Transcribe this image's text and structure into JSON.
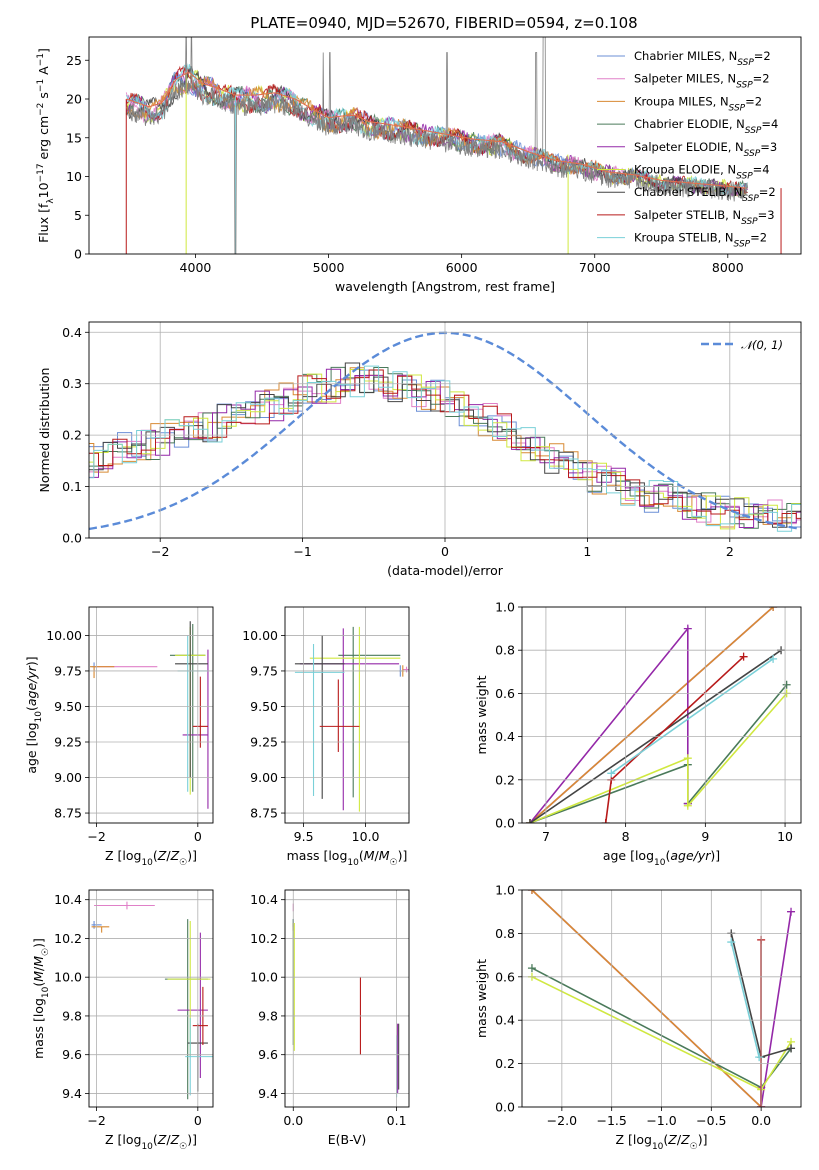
{
  "figure": {
    "title": "PLATE=0940, MJD=52670, FIBERID=0594, z=0.108"
  },
  "colors": {
    "Chabrier MILES": "#6b8fd6",
    "Salpeter MILES": "#e080c8",
    "Kroupa MILES": "#d88a33",
    "Chabrier ELODIE": "#4a7a5a",
    "Salpeter ELODIE": "#9428a8",
    "Kroupa ELODIE": "#d0e840",
    "Chabrier STELIB": "#444444",
    "Salpeter STELIB": "#b81a1a",
    "Kroupa STELIB": "#7ad0d8",
    "normal": "#5b8bd8",
    "data": "#808080"
  },
  "chart_data": [
    {
      "id": "spectrum",
      "type": "line",
      "title": "PLATE=0940, MJD=52670, FIBERID=0594, z=0.108",
      "xlabel": "wavelength [Angstrom, rest frame]",
      "ylabel": "Flux [fλ10⁻¹⁷ erg cm⁻² s⁻¹ A⁻¹]",
      "xlim": [
        3200,
        8550
      ],
      "ylim": [
        0,
        28
      ],
      "xticks": [
        4000,
        5000,
        6000,
        7000,
        8000
      ],
      "yticks": [
        0,
        5,
        10,
        15,
        20,
        25
      ],
      "legend_position": "top-right",
      "legend": [
        {
          "label": "Chabrier MILES, N",
          "sub": "SSP",
          "tail": "=2",
          "key": "Chabrier MILES"
        },
        {
          "label": "Salpeter MILES, N",
          "sub": "SSP",
          "tail": "=2",
          "key": "Salpeter MILES"
        },
        {
          "label": "Kroupa MILES, N",
          "sub": "SSP",
          "tail": "=2",
          "key": "Kroupa MILES"
        },
        {
          "label": "Chabrier ELODIE, N",
          "sub": "SSP",
          "tail": "=4",
          "key": "Chabrier ELODIE"
        },
        {
          "label": "Salpeter ELODIE, N",
          "sub": "SSP",
          "tail": "=3",
          "key": "Salpeter ELODIE"
        },
        {
          "label": "Kroupa ELODIE, N",
          "sub": "SSP",
          "tail": "=4",
          "key": "Kroupa ELODIE"
        },
        {
          "label": "Chabrier STELIB, N",
          "sub": "SSP",
          "tail": "=2",
          "key": "Chabrier STELIB"
        },
        {
          "label": "Salpeter STELIB, N",
          "sub": "SSP",
          "tail": "=3",
          "key": "Salpeter STELIB"
        },
        {
          "label": "Kroupa STELIB, N",
          "sub": "SSP",
          "tail": "=2",
          "key": "Kroupa STELIB"
        }
      ],
      "continuum": {
        "x": [
          3480,
          3550,
          3650,
          3750,
          3850,
          3950,
          4050,
          4150,
          4300,
          4450,
          4600,
          4750,
          4900,
          5000,
          5100,
          5200,
          5300,
          5500,
          5700,
          5900,
          6100,
          6300,
          6500,
          6700,
          6900,
          7100,
          7300,
          7500,
          7700,
          7900,
          8150
        ],
        "y": [
          20.0,
          19.6,
          19.0,
          19.5,
          22.5,
          23.5,
          22.0,
          21.5,
          20.5,
          20.5,
          20.8,
          20.0,
          18.5,
          17.6,
          17.8,
          17.9,
          17.1,
          16.6,
          16.0,
          15.4,
          14.8,
          14.5,
          13.2,
          12.1,
          11.6,
          10.6,
          10.2,
          9.5,
          9.2,
          8.9,
          8.5
        ]
      }
    },
    {
      "id": "residuals",
      "type": "line",
      "xlabel": "(data-model)/error",
      "ylabel": "Normed distribution",
      "xlim": [
        -2.5,
        2.5
      ],
      "ylim": [
        0,
        0.42
      ],
      "xticks": [
        -2,
        -1,
        0,
        1,
        2
      ],
      "yticks": [
        0.0,
        0.1,
        0.2,
        0.3,
        0.4
      ],
      "legend_position": "top-right",
      "legend_label": "𝒩(0, 1)",
      "envelope": {
        "x": [
          -2.5,
          -2.0,
          -1.5,
          -1.0,
          -0.6,
          -0.3,
          0.0,
          0.3,
          0.6,
          1.0,
          1.5,
          2.0,
          2.5
        ],
        "y": [
          0.15,
          0.19,
          0.23,
          0.28,
          0.31,
          0.29,
          0.27,
          0.23,
          0.18,
          0.12,
          0.08,
          0.05,
          0.035
        ]
      }
    },
    {
      "id": "age-vs-Z",
      "type": "scatter",
      "xlabel": "Z [log10(Z/Z☉)]",
      "ylabel": "age  [log10(age/yr)]",
      "xlim": [
        -2.15,
        0.3
      ],
      "ylim": [
        8.68,
        10.2
      ],
      "xticks": [
        -2,
        0
      ],
      "yticks": [
        8.75,
        9.0,
        9.25,
        9.5,
        9.75,
        10.0
      ],
      "points": [
        {
          "key": "Chabrier MILES",
          "x": -2.05,
          "y": 9.78,
          "xe": [
            0.05,
            0.05
          ],
          "ye": [
            0.03,
            0.03
          ]
        },
        {
          "key": "Salpeter MILES",
          "x": -1.55,
          "y": 9.78,
          "xe": [
            0.5,
            0.75
          ],
          "ye": [
            0.0,
            0.0
          ]
        },
        {
          "key": "Kroupa MILES",
          "x": -2.05,
          "y": 9.78,
          "xe": [
            0.08,
            0.4
          ],
          "ye": [
            0.08,
            0.0
          ]
        },
        {
          "key": "Chabrier ELODIE",
          "x": -0.1,
          "y": 9.86,
          "xe": [
            0.45,
            0.25
          ],
          "ye": [
            0.96,
            0.22
          ]
        },
        {
          "key": "Salpeter ELODIE",
          "x": 0.2,
          "y": 9.3,
          "xe": [
            0.5,
            0.0
          ],
          "ye": [
            0.52,
            0.6
          ]
        },
        {
          "key": "Kroupa ELODIE",
          "x": -0.15,
          "y": 9.86,
          "xe": [
            0.3,
            0.3
          ],
          "ye": [
            0.98,
            0.2
          ]
        },
        {
          "key": "Chabrier STELIB",
          "x": -0.15,
          "y": 9.8,
          "xe": [
            0.3,
            0.35
          ],
          "ye": [
            0.8,
            0.3
          ]
        },
        {
          "key": "Salpeter STELIB",
          "x": 0.05,
          "y": 9.36,
          "xe": [
            0.15,
            0.15
          ],
          "ye": [
            0.15,
            0.35
          ]
        },
        {
          "key": "Kroupa STELIB",
          "x": -0.2,
          "y": 9.75,
          "xe": [
            0.2,
            0.4
          ],
          "ye": [
            0.85,
            0.25
          ]
        }
      ]
    },
    {
      "id": "age-vs-mass",
      "type": "scatter",
      "xlabel": "mass [log10(M/M☉)]",
      "ylabel": "",
      "xlim": [
        9.35,
        10.35
      ],
      "ylim": [
        8.68,
        10.2
      ],
      "xticks": [
        9.5,
        10.0
      ],
      "yticks": [
        8.75,
        9.0,
        9.25,
        9.5,
        9.75,
        10.0
      ],
      "points": [
        {
          "key": "Chabrier MILES",
          "x": 10.28,
          "y": 9.75,
          "xe": [
            0.01,
            0.01
          ],
          "ye": [
            0.04,
            0.04
          ]
        },
        {
          "key": "Salpeter MILES",
          "x": 10.33,
          "y": 9.76,
          "xe": [
            0.03,
            0.03
          ],
          "ye": [
            0.02,
            0.02
          ]
        },
        {
          "key": "Kroupa MILES",
          "x": 10.3,
          "y": 9.75,
          "xe": [
            0.01,
            0.01
          ],
          "ye": [
            0.04,
            0.04
          ]
        },
        {
          "key": "Chabrier ELODIE",
          "x": 9.9,
          "y": 9.86,
          "xe": [
            0.12,
            0.38
          ],
          "ye": [
            1.0,
            0.2
          ]
        },
        {
          "key": "Salpeter ELODIE",
          "x": 9.82,
          "y": 9.8,
          "xe": [
            0.35,
            0.45
          ],
          "ye": [
            1.03,
            0.25
          ]
        },
        {
          "key": "Kroupa ELODIE",
          "x": 9.95,
          "y": 9.84,
          "xe": [
            0.4,
            0.33
          ],
          "ye": [
            1.08,
            0.22
          ]
        },
        {
          "key": "Chabrier STELIB",
          "x": 9.65,
          "y": 9.8,
          "xe": [
            0.22,
            0.18
          ],
          "ye": [
            0.95,
            0.2
          ]
        },
        {
          "key": "Salpeter STELIB",
          "x": 9.78,
          "y": 9.36,
          "xe": [
            0.15,
            0.17
          ],
          "ye": [
            0.18,
            0.33
          ]
        },
        {
          "key": "Kroupa STELIB",
          "x": 9.58,
          "y": 9.74,
          "xe": [
            0.15,
            0.25
          ],
          "ye": [
            0.87,
            0.2
          ]
        }
      ]
    },
    {
      "id": "weight-vs-age",
      "type": "line",
      "xlabel": "age  [log10(age/yr)]",
      "ylabel": "mass weight",
      "xlim": [
        6.7,
        10.2
      ],
      "ylim": [
        0,
        1.0
      ],
      "xticks": [
        7,
        8,
        9,
        10
      ],
      "yticks": [
        0.0,
        0.2,
        0.4,
        0.6,
        0.8,
        1.0
      ],
      "series": [
        {
          "key": "Chabrier MILES",
          "x": [
            6.8,
            9.85
          ],
          "y": [
            0.0,
            1.0
          ]
        },
        {
          "key": "Salpeter MILES",
          "x": [
            6.8,
            9.85
          ],
          "y": [
            0.0,
            1.0
          ]
        },
        {
          "key": "Kroupa MILES",
          "x": [
            6.8,
            9.85
          ],
          "y": [
            0.0,
            1.0
          ]
        },
        {
          "key": "Chabrier ELODIE",
          "x": [
            6.8,
            8.78,
            8.78,
            10.02
          ],
          "y": [
            0.0,
            0.27,
            0.09,
            0.64
          ]
        },
        {
          "key": "Salpeter ELODIE",
          "x": [
            6.8,
            8.78,
            8.78
          ],
          "y": [
            0.0,
            0.9,
            0.09
          ]
        },
        {
          "key": "Kroupa ELODIE",
          "x": [
            6.8,
            8.78,
            8.78,
            10.02
          ],
          "y": [
            0.0,
            0.3,
            0.08,
            0.6
          ]
        },
        {
          "key": "Chabrier STELIB",
          "x": [
            6.8,
            9.95
          ],
          "y": [
            0.0,
            0.8
          ]
        },
        {
          "key": "Salpeter STELIB",
          "x": [
            7.75,
            7.82,
            9.48
          ],
          "y": [
            0.0,
            0.2,
            0.77
          ]
        },
        {
          "key": "Kroupa STELIB",
          "x": [
            7.82,
            9.85
          ],
          "y": [
            0.23,
            0.76
          ]
        }
      ]
    },
    {
      "id": "mass-vs-Z",
      "type": "scatter",
      "xlabel": "Z [log10(Z/Z☉)]",
      "ylabel": "mass [log10(M/M☉)]",
      "xlim": [
        -2.15,
        0.3
      ],
      "ylim": [
        9.33,
        10.45
      ],
      "xticks": [
        -2,
        0
      ],
      "yticks": [
        9.4,
        9.6,
        9.8,
        10.0,
        10.2,
        10.4
      ],
      "points": [
        {
          "key": "Chabrier MILES",
          "x": -2.05,
          "y": 10.27,
          "xe": [
            0.05,
            0.15
          ],
          "ye": [
            0.02,
            0.02
          ]
        },
        {
          "key": "Salpeter MILES",
          "x": -1.4,
          "y": 10.37,
          "xe": [
            0.65,
            0.55
          ],
          "ye": [
            0.02,
            0.02
          ]
        },
        {
          "key": "Kroupa MILES",
          "x": -1.9,
          "y": 10.26,
          "xe": [
            0.2,
            0.15
          ],
          "ye": [
            0.03,
            0.0
          ]
        },
        {
          "key": "Chabrier ELODIE",
          "x": -0.2,
          "y": 9.99,
          "xe": [
            0.45,
            0.4
          ],
          "ye": [
            0.62,
            0.31
          ]
        },
        {
          "key": "Salpeter ELODIE",
          "x": 0.05,
          "y": 9.83,
          "xe": [
            0.45,
            0.15
          ],
          "ye": [
            0.35,
            0.4
          ]
        },
        {
          "key": "Kroupa ELODIE",
          "x": -0.15,
          "y": 9.99,
          "xe": [
            0.45,
            0.4
          ],
          "ye": [
            0.4,
            0.3
          ]
        },
        {
          "key": "Chabrier STELIB",
          "x": 0.0,
          "y": 9.66,
          "xe": [
            0.2,
            0.2
          ],
          "ye": [
            0.25,
            0.1
          ]
        },
        {
          "key": "Salpeter STELIB",
          "x": 0.1,
          "y": 9.75,
          "xe": [
            0.2,
            0.1
          ],
          "ye": [
            0.1,
            0.2
          ]
        },
        {
          "key": "Kroupa STELIB",
          "x": -0.15,
          "y": 9.59,
          "xe": [
            0.1,
            0.45
          ],
          "ye": [
            0.2,
            0.2
          ]
        }
      ]
    },
    {
      "id": "mass-vs-EBV",
      "type": "scatter",
      "xlabel": "E(B-V)",
      "ylabel": "",
      "xlim": [
        -0.008,
        0.112
      ],
      "ylim": [
        9.33,
        10.45
      ],
      "xticks": [
        0.0,
        0.1
      ],
      "yticks": [
        9.4,
        9.6,
        9.8,
        10.0,
        10.2,
        10.4
      ],
      "points": [
        {
          "key": "Chabrier MILES",
          "x": 0.0,
          "y": 10.28,
          "xe": [
            0,
            0
          ],
          "ye": [
            0.02,
            0.02
          ]
        },
        {
          "key": "Salpeter MILES",
          "x": 0.0,
          "y": 10.36,
          "xe": [
            0,
            0
          ],
          "ye": [
            0.02,
            0.02
          ]
        },
        {
          "key": "Kroupa MILES",
          "x": 0.0,
          "y": 10.26,
          "xe": [
            0,
            0
          ],
          "ye": [
            0.02,
            0.02
          ]
        },
        {
          "key": "Chabrier ELODIE",
          "x": 0.0,
          "y": 10.0,
          "xe": [
            0,
            0
          ],
          "ye": [
            0.35,
            0.3
          ]
        },
        {
          "key": "Kroupa ELODIE",
          "x": 0.001,
          "y": 9.95,
          "xe": [
            0,
            0
          ],
          "ye": [
            0.33,
            0.33
          ]
        },
        {
          "key": "Salpeter STELIB",
          "x": 0.065,
          "y": 9.8,
          "xe": [
            0,
            0
          ],
          "ye": [
            0.2,
            0.2
          ]
        },
        {
          "key": "Chabrier STELIB",
          "x": 0.102,
          "y": 9.6,
          "xe": [
            0,
            0
          ],
          "ye": [
            0.18,
            0.16
          ]
        },
        {
          "key": "Salpeter ELODIE",
          "x": 0.101,
          "y": 9.6,
          "xe": [
            0,
            0
          ],
          "ye": [
            0.2,
            0.16
          ]
        },
        {
          "key": "Kroupa STELIB",
          "x": 0.1,
          "y": 9.55,
          "xe": [
            0,
            0
          ],
          "ye": [
            0.17,
            0.15
          ]
        }
      ]
    },
    {
      "id": "weight-vs-Z",
      "type": "line",
      "xlabel": "Z [log10(Z/Z☉)]",
      "ylabel": "mass weight",
      "xlim": [
        -2.4,
        0.4
      ],
      "ylim": [
        0,
        1.0
      ],
      "xticks": [
        -2.0,
        -1.5,
        -1.0,
        -0.5,
        0.0
      ],
      "yticks": [
        0.0,
        0.2,
        0.4,
        0.6,
        0.8,
        1.0
      ],
      "series": [
        {
          "key": "Chabrier MILES",
          "x": [
            -2.3,
            0.0
          ],
          "y": [
            1.0,
            0.0
          ]
        },
        {
          "key": "Salpeter MILES",
          "x": [
            -2.3,
            0.0
          ],
          "y": [
            1.0,
            0.0
          ]
        },
        {
          "key": "Kroupa MILES",
          "x": [
            -2.3,
            0.0
          ],
          "y": [
            1.0,
            0.0
          ]
        },
        {
          "key": "Chabrier ELODIE",
          "x": [
            -2.3,
            0.0,
            0.3
          ],
          "y": [
            0.64,
            0.09,
            0.27
          ]
        },
        {
          "key": "Salpeter ELODIE",
          "x": [
            0.0,
            0.0,
            0.3
          ],
          "y": [
            0.09,
            0.0,
            0.9
          ]
        },
        {
          "key": "Kroupa ELODIE",
          "x": [
            -2.3,
            0.0,
            0.3
          ],
          "y": [
            0.6,
            0.08,
            0.3
          ]
        },
        {
          "key": "Chabrier STELIB",
          "x": [
            -0.3,
            0.0,
            0.3
          ],
          "y": [
            0.8,
            0.23,
            0.27
          ]
        },
        {
          "key": "Salpeter STELIB",
          "x": [
            0.0,
            0.0
          ],
          "y": [
            0.77,
            0.0
          ]
        },
        {
          "key": "Kroupa STELIB",
          "x": [
            -0.3,
            -0.02
          ],
          "y": [
            0.76,
            0.23
          ]
        }
      ]
    }
  ]
}
